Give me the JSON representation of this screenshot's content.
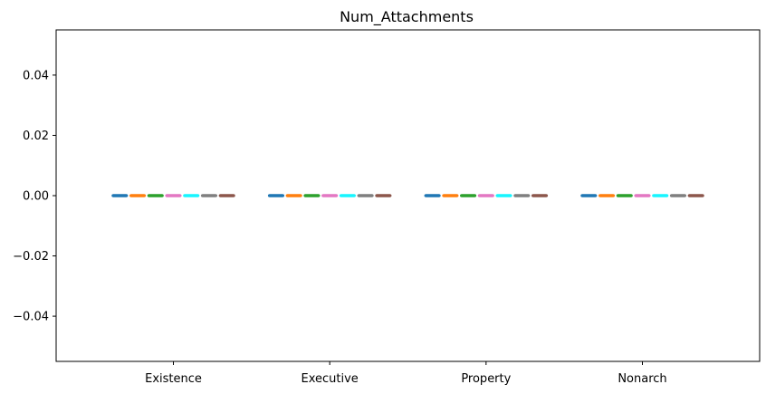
{
  "chart_data": {
    "type": "bar",
    "title": "Num_Attachments",
    "xlabel": "",
    "ylabel": "",
    "categories": [
      "Existence",
      "Executive",
      "Property",
      "Nonarch"
    ],
    "series": [
      {
        "values": [
          0,
          0,
          0,
          0
        ],
        "color": "#1f77b4"
      },
      {
        "values": [
          0,
          0,
          0,
          0
        ],
        "color": "#ff7f0e"
      },
      {
        "values": [
          0,
          0,
          0,
          0
        ],
        "color": "#2ca02c"
      },
      {
        "values": [
          0,
          0,
          0,
          0
        ],
        "color": "#e377c2"
      },
      {
        "values": [
          0,
          0,
          0,
          0
        ],
        "color": "#17f5ff"
      },
      {
        "values": [
          0,
          0,
          0,
          0
        ],
        "color": "#7f7f7f"
      },
      {
        "values": [
          0,
          0,
          0,
          0
        ],
        "color": "#8c564b"
      }
    ],
    "ylim": [
      -0.055,
      0.055
    ],
    "yticks": [
      -0.04,
      -0.02,
      0.0,
      0.02,
      0.04
    ],
    "ytick_labels": [
      "−0.04",
      "−0.02",
      "0.00",
      "0.02",
      "0.04"
    ],
    "grid": false,
    "legend": "none"
  }
}
